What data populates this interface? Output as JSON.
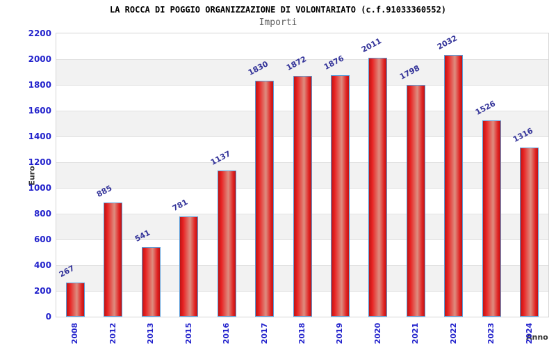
{
  "header": {
    "title": "LA ROCCA DI POGGIO ORGANIZZAZIONE DI VOLONTARIATO (c.f.91033360552)",
    "subtitle": "Importi"
  },
  "chart_data": {
    "type": "bar",
    "title": "LA ROCCA DI POGGIO ORGANIZZAZIONE DI VOLONTARIATO (c.f.91033360552)",
    "subtitle": "Importi",
    "categories": [
      "2008",
      "2012",
      "2013",
      "2015",
      "2016",
      "2017",
      "2018",
      "2019",
      "2020",
      "2021",
      "2022",
      "2023",
      "2024"
    ],
    "values": [
      267,
      885,
      541,
      781,
      1137,
      1830,
      1872,
      1876,
      2011,
      1798,
      2032,
      1526,
      1316
    ],
    "xlabel": "Anno",
    "ylabel": "Euro",
    "ylim": [
      0,
      2200
    ],
    "yticks": [
      0,
      200,
      400,
      600,
      800,
      1000,
      1200,
      1400,
      1600,
      1800,
      2000,
      2200
    ],
    "grid": true,
    "legend": "none",
    "colors": {
      "bar_border": "#5b9dd9",
      "bar_red_dark": "#bd1414",
      "bar_red": "#e82222",
      "bar_center_light": "#de8d80",
      "band_gray": "#f2f2f2",
      "band_white": "#ffffff",
      "gridline": "#e2e2e2",
      "plot_border": "#d4d4d4",
      "tick_label": "#2222cc",
      "value_label": "#333399",
      "axis_title": "#333333",
      "title": "#000000",
      "subtitle": "#5f5f5f"
    }
  }
}
